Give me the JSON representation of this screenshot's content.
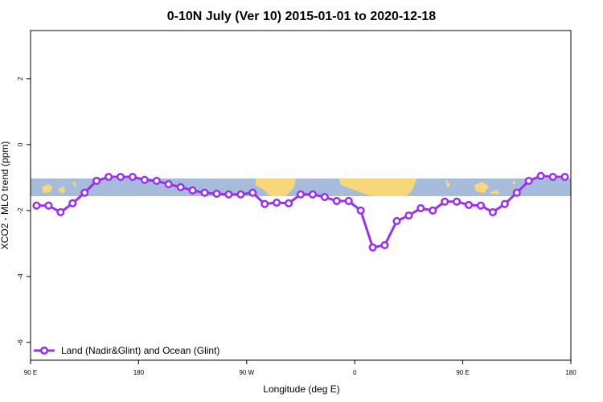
{
  "chart_data": {
    "type": "line",
    "title": "0-10N July (Ver 10)   2015-01-01 to 2020-12-18",
    "xlabel": "Longitude (deg E)",
    "ylabel": "XCO2 - MLO trend (ppm)",
    "xlim": [
      90,
      540
    ],
    "xticks": [
      {
        "value": 90,
        "label": "90 E"
      },
      {
        "value": 180,
        "label": "180"
      },
      {
        "value": 270,
        "label": "90 W"
      },
      {
        "value": 360,
        "label": "0"
      },
      {
        "value": 450,
        "label": "90 E"
      },
      {
        "value": 540,
        "label": "180"
      }
    ],
    "ylim": [
      -6.54,
      3.46
    ],
    "yticks": [
      2,
      0,
      -2,
      -4,
      -6
    ],
    "legend": "bottom-left",
    "x": [
      95,
      105,
      115,
      125,
      135,
      145,
      155,
      165,
      175,
      185,
      195,
      205,
      215,
      225,
      235,
      245,
      255,
      265,
      275,
      285,
      295,
      305,
      315,
      325,
      335,
      345,
      355,
      365,
      375,
      385,
      395,
      405,
      415,
      425,
      435,
      445,
      455,
      465,
      475,
      485,
      495,
      505,
      515,
      525,
      535
    ],
    "series": [
      {
        "name": "Land (Nadir&Glint) and Ocean (Glint)",
        "color": "#9b30f0",
        "values": [
          -1.85,
          -1.85,
          -2.05,
          -1.78,
          -1.46,
          -1.1,
          -0.98,
          -0.98,
          -0.98,
          -1.07,
          -1.1,
          -1.2,
          -1.29,
          -1.39,
          -1.46,
          -1.49,
          -1.51,
          -1.51,
          -1.46,
          -1.8,
          -1.76,
          -1.78,
          -1.51,
          -1.51,
          -1.59,
          -1.71,
          -1.71,
          -2.0,
          -3.12,
          -3.05,
          -2.32,
          -2.15,
          -1.93,
          -2.0,
          -1.73,
          -1.73,
          -1.83,
          -1.85,
          -2.05,
          -1.8,
          -1.46,
          -1.1,
          -0.95,
          -0.98,
          -0.98
        ]
      }
    ]
  }
}
